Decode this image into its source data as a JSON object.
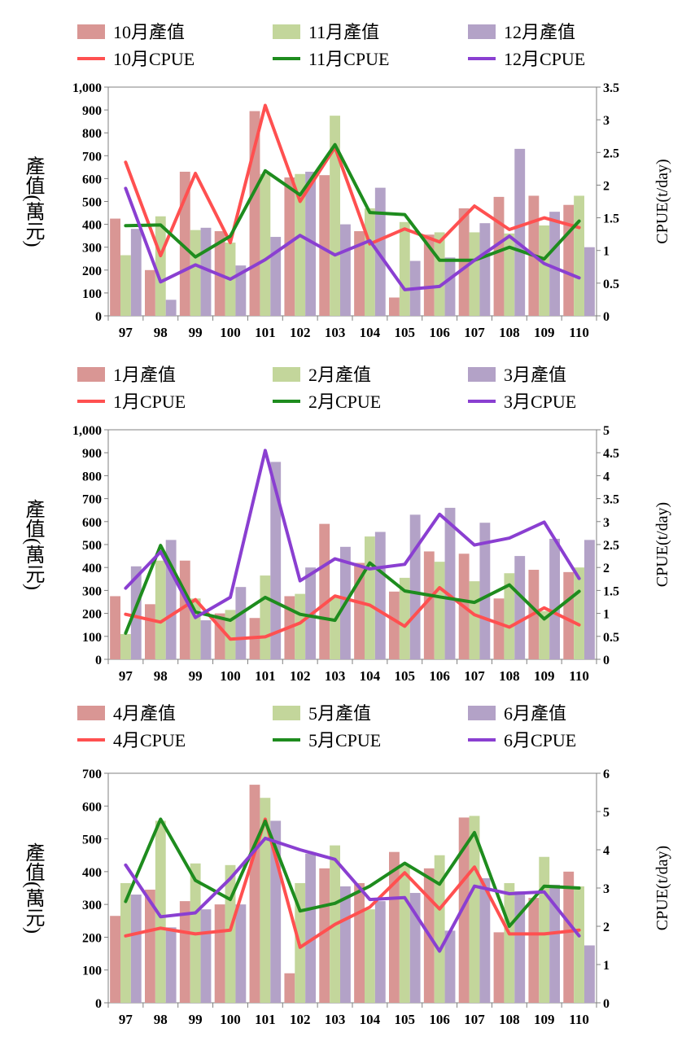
{
  "colors": {
    "bar_a": "#D99694",
    "bar_b": "#C3D69B",
    "bar_c": "#B3A2C7",
    "line_a": "#FF5050",
    "line_b": "#1E8C1E",
    "line_c": "#8A3FD1",
    "axis": "#808080"
  },
  "chart_data": [
    {
      "type": "bar",
      "categories": [
        "97",
        "98",
        "99",
        "100",
        "101",
        "102",
        "103",
        "104",
        "105",
        "106",
        "107",
        "108",
        "109",
        "110"
      ],
      "series": [
        {
          "name": "10月產值",
          "kind": "bar",
          "axis": "left",
          "values": [
            425,
            200,
            630,
            370,
            895,
            605,
            615,
            370,
            80,
            355,
            470,
            520,
            525,
            485
          ]
        },
        {
          "name": "11月產值",
          "kind": "bar",
          "axis": "left",
          "values": [
            265,
            435,
            375,
            320,
            620,
            620,
            875,
            470,
            410,
            365,
            365,
            360,
            395,
            525
          ]
        },
        {
          "name": "12月產值",
          "kind": "bar",
          "axis": "left",
          "values": [
            380,
            70,
            385,
            220,
            345,
            630,
            400,
            560,
            240,
            255,
            405,
            730,
            455,
            300
          ]
        },
        {
          "name": "10月CPUE",
          "kind": "line",
          "axis": "right",
          "values": [
            2.35,
            0.92,
            2.18,
            1.12,
            3.22,
            1.75,
            2.58,
            1.1,
            1.33,
            1.13,
            1.68,
            1.32,
            1.5,
            1.35
          ]
        },
        {
          "name": "11月CPUE",
          "kind": "line",
          "axis": "right",
          "values": [
            1.38,
            1.39,
            0.9,
            1.22,
            2.22,
            1.85,
            2.62,
            1.58,
            1.55,
            0.85,
            0.85,
            1.05,
            0.87,
            1.45
          ]
        },
        {
          "name": "12月CPUE",
          "kind": "line",
          "axis": "right",
          "values": [
            1.95,
            0.52,
            0.78,
            0.56,
            0.86,
            1.23,
            0.93,
            1.15,
            0.4,
            0.45,
            0.85,
            1.22,
            0.8,
            0.58
          ]
        }
      ],
      "ylabel": "產值(萬元)",
      "y2label": "CPUE(t/day)",
      "ylim": [
        0,
        1000
      ],
      "y_ticks": [
        0,
        100,
        200,
        300,
        400,
        500,
        600,
        700,
        800,
        900,
        1000
      ],
      "y_tick_labels": [
        "0",
        "100",
        "200",
        "300",
        "400",
        "500",
        "600",
        "700",
        "800",
        "900",
        "1,000"
      ],
      "y2lim": [
        0,
        3.5
      ],
      "y2_ticks": [
        0,
        0.5,
        1,
        1.5,
        2,
        2.5,
        3,
        3.5
      ],
      "y2_tick_labels": [
        "0",
        "0.5",
        "1",
        "1.5",
        "2",
        "2.5",
        "3",
        "3.5"
      ],
      "legend_position": "top"
    },
    {
      "type": "bar",
      "categories": [
        "97",
        "98",
        "99",
        "100",
        "101",
        "102",
        "103",
        "104",
        "105",
        "106",
        "107",
        "108",
        "109",
        "110"
      ],
      "series": [
        {
          "name": "1月產值",
          "kind": "bar",
          "axis": "left",
          "values": [
            275,
            240,
            430,
            200,
            180,
            275,
            590,
            420,
            295,
            470,
            460,
            265,
            390,
            380
          ]
        },
        {
          "name": "2月產值",
          "kind": "bar",
          "axis": "left",
          "values": [
            110,
            430,
            265,
            215,
            365,
            285,
            270,
            535,
            355,
            425,
            340,
            375,
            210,
            400
          ]
        },
        {
          "name": "3月產值",
          "kind": "bar",
          "axis": "left",
          "values": [
            405,
            520,
            170,
            315,
            860,
            400,
            490,
            555,
            630,
            660,
            595,
            450,
            525,
            520
          ]
        },
        {
          "name": "1月CPUE",
          "kind": "line",
          "axis": "right",
          "values": [
            0.98,
            0.81,
            1.3,
            0.44,
            0.49,
            0.79,
            1.38,
            1.18,
            0.72,
            1.56,
            0.97,
            0.7,
            1.12,
            0.75
          ]
        },
        {
          "name": "2月CPUE",
          "kind": "line",
          "axis": "right",
          "values": [
            0.57,
            2.48,
            1.03,
            0.85,
            1.35,
            0.98,
            0.85,
            2.1,
            1.49,
            1.36,
            1.24,
            1.62,
            0.88,
            1.48
          ]
        },
        {
          "name": "3月CPUE",
          "kind": "line",
          "axis": "right",
          "values": [
            1.55,
            2.34,
            0.91,
            1.35,
            4.55,
            1.71,
            2.19,
            1.97,
            2.07,
            3.16,
            2.49,
            2.64,
            2.99,
            1.76
          ]
        }
      ],
      "ylabel": "產值(萬元)",
      "y2label": "CPUE(t/day)",
      "ylim": [
        0,
        1000
      ],
      "y_ticks": [
        0,
        100,
        200,
        300,
        400,
        500,
        600,
        700,
        800,
        900,
        1000
      ],
      "y_tick_labels": [
        "0",
        "100",
        "200",
        "300",
        "400",
        "500",
        "600",
        "700",
        "800",
        "900",
        "1,000"
      ],
      "y2lim": [
        0,
        5
      ],
      "y2_ticks": [
        0,
        0.5,
        1,
        1.5,
        2,
        2.5,
        3,
        3.5,
        4,
        4.5,
        5
      ],
      "y2_tick_labels": [
        "0",
        "0.5",
        "1",
        "1.5",
        "2",
        "2.5",
        "3",
        "3.5",
        "4",
        "4.5",
        "5"
      ],
      "legend_position": "top"
    },
    {
      "type": "bar",
      "categories": [
        "97",
        "98",
        "99",
        "100",
        "101",
        "102",
        "103",
        "104",
        "105",
        "106",
        "107",
        "108",
        "109",
        "110"
      ],
      "series": [
        {
          "name": "4月產值",
          "kind": "bar",
          "axis": "left",
          "values": [
            265,
            345,
            310,
            300,
            665,
            90,
            410,
            365,
            460,
            410,
            565,
            215,
            320,
            400
          ]
        },
        {
          "name": "5月產值",
          "kind": "bar",
          "axis": "left",
          "values": [
            365,
            555,
            425,
            420,
            625,
            365,
            480,
            285,
            420,
            450,
            570,
            365,
            445,
            355
          ]
        },
        {
          "name": "6月產值",
          "kind": "bar",
          "axis": "left",
          "values": [
            330,
            230,
            285,
            300,
            555,
            455,
            355,
            310,
            335,
            220,
            380,
            340,
            360,
            175
          ]
        },
        {
          "name": "4月CPUE",
          "kind": "line",
          "axis": "right",
          "values": [
            1.75,
            1.95,
            1.8,
            1.9,
            4.8,
            1.45,
            2.05,
            2.5,
            3.4,
            2.45,
            3.55,
            1.8,
            1.8,
            1.9
          ]
        },
        {
          "name": "5月CPUE",
          "kind": "line",
          "axis": "right",
          "values": [
            2.65,
            4.8,
            3.2,
            2.7,
            4.75,
            2.4,
            2.6,
            3.05,
            3.65,
            3.1,
            4.45,
            2.0,
            3.05,
            3.0
          ]
        },
        {
          "name": "6月CPUE",
          "kind": "line",
          "axis": "right",
          "values": [
            3.6,
            2.25,
            2.35,
            3.25,
            4.3,
            4.0,
            3.75,
            2.7,
            2.75,
            1.35,
            3.05,
            2.85,
            2.9,
            1.75
          ]
        }
      ],
      "ylabel": "產值(萬元)",
      "y2label": "CPUE(t/day)",
      "ylim": [
        0,
        700
      ],
      "y_ticks": [
        0,
        100,
        200,
        300,
        400,
        500,
        600,
        700
      ],
      "y_tick_labels": [
        "0",
        "100",
        "200",
        "300",
        "400",
        "500",
        "600",
        "700"
      ],
      "y2lim": [
        0,
        6
      ],
      "y2_ticks": [
        0,
        1,
        2,
        3,
        4,
        5,
        6
      ],
      "y2_tick_labels": [
        "0",
        "1",
        "2",
        "3",
        "4",
        "5",
        "6"
      ],
      "legend_position": "top"
    }
  ]
}
